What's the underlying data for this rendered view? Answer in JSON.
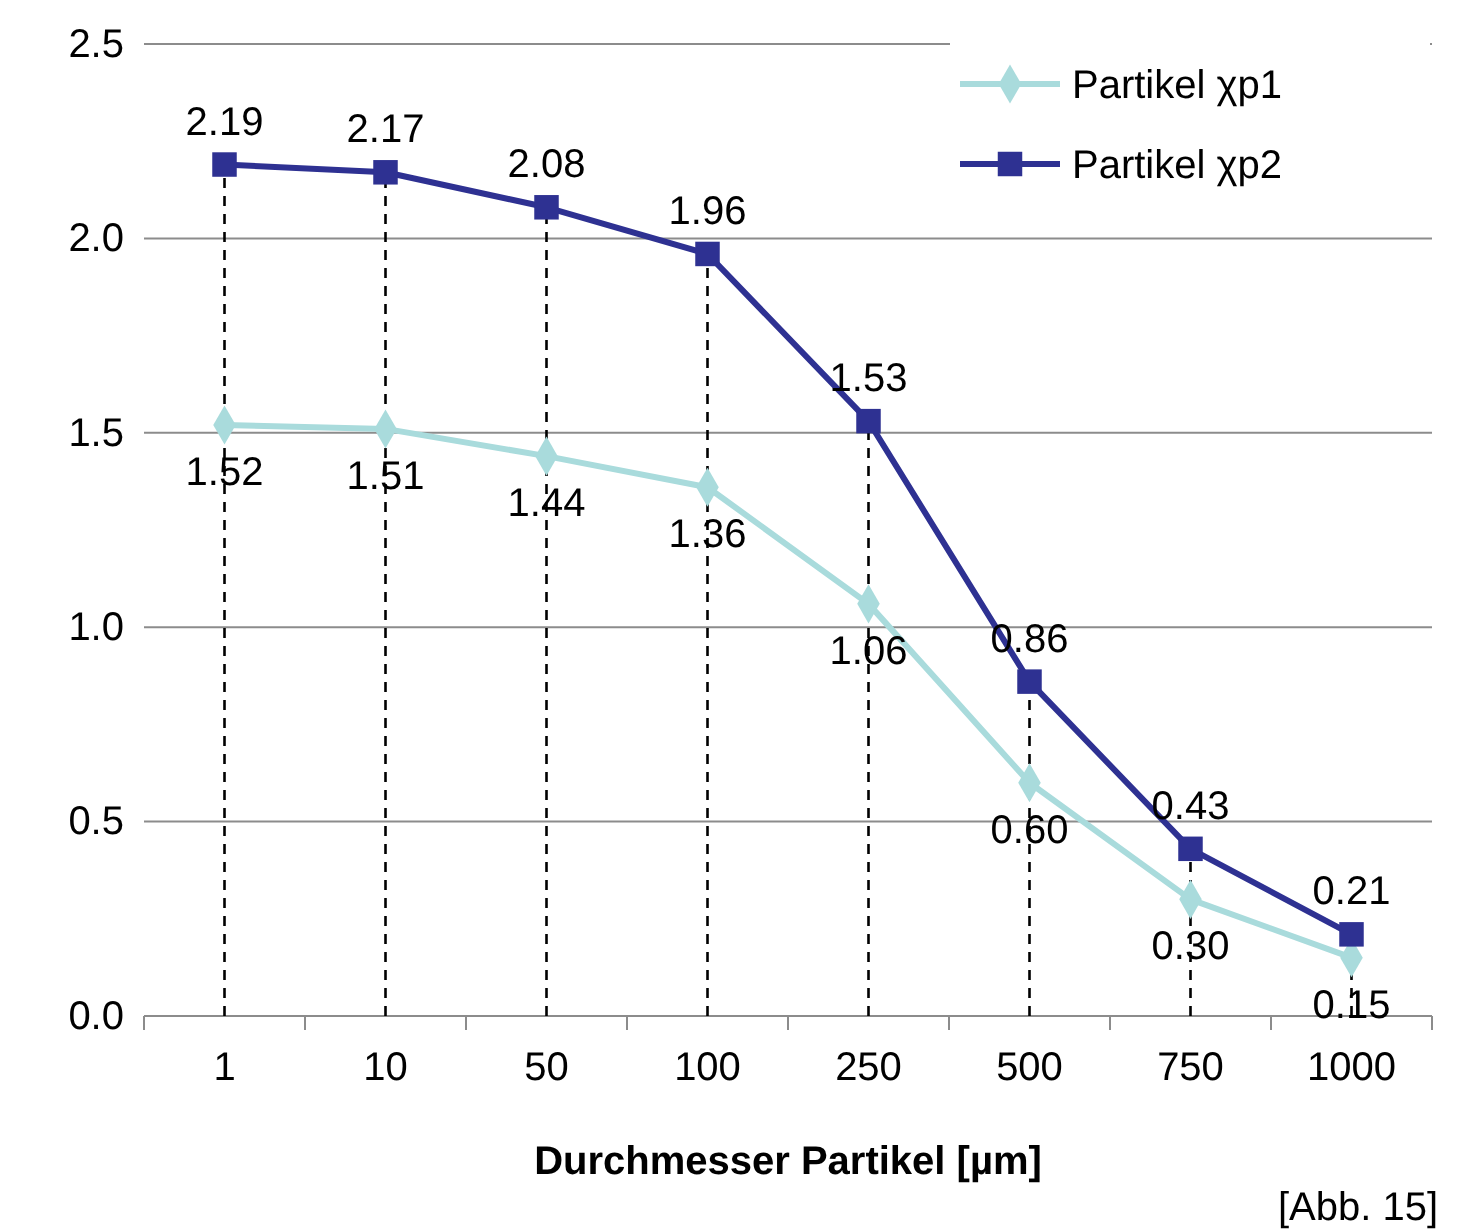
{
  "chart_data": {
    "type": "line",
    "xlabel": "Durchmesser Partikel [µm]",
    "annotations": [
      "[Abb. 15]"
    ],
    "categories": [
      "1",
      "10",
      "50",
      "100",
      "250",
      "500",
      "750",
      "1000"
    ],
    "ylim": [
      0,
      2.5
    ],
    "yticks": [
      {
        "value": 0,
        "label": "0.0"
      },
      {
        "value": 0.5,
        "label": "0.5"
      },
      {
        "value": 1,
        "label": "1.0"
      },
      {
        "value": 1.5,
        "label": "1.5"
      },
      {
        "value": 2,
        "label": "2.0"
      },
      {
        "value": 2.5,
        "label": "2.5"
      }
    ],
    "grid": "y",
    "legend": "top right",
    "line_style": "solid",
    "series": [
      {
        "name": "Partikel χp1",
        "color": "#a9dbdc",
        "marker": "diamond",
        "values": [
          1.52,
          1.51,
          1.44,
          1.36,
          1.06,
          0.6,
          0.3,
          0.15
        ],
        "value_labels": [
          "1.52",
          "1.51",
          "1.44",
          "1.36",
          "1.06",
          "0.60",
          "0.30",
          "0.15"
        ]
      },
      {
        "name": "Partikel χp2",
        "color": "#2e3192",
        "marker": "square",
        "values": [
          2.19,
          2.17,
          2.08,
          1.96,
          1.53,
          0.86,
          0.43,
          0.21
        ],
        "value_labels": [
          "2.19",
          "2.17",
          "2.08",
          "1.96",
          "1.53",
          "0.86",
          "0.43",
          "0.21"
        ]
      }
    ],
    "ref_lines": [
      {
        "axis": "x",
        "value": "1",
        "line_style": "dashed",
        "color": "#000000"
      },
      {
        "axis": "x",
        "value": "10",
        "line_style": "dashed",
        "color": "#000000"
      },
      {
        "axis": "x",
        "value": "50",
        "line_style": "dashed",
        "color": "#000000"
      },
      {
        "axis": "x",
        "value": "100",
        "line_style": "dashed",
        "color": "#000000"
      },
      {
        "axis": "x",
        "value": "250",
        "line_style": "dashed",
        "color": "#000000"
      },
      {
        "axis": "x",
        "value": "500",
        "line_style": "dashed",
        "color": "#000000"
      },
      {
        "axis": "x",
        "value": "750",
        "line_style": "dashed",
        "color": "#000000"
      },
      {
        "axis": "x",
        "value": "1000",
        "line_style": "dashed",
        "color": "#000000"
      }
    ]
  }
}
